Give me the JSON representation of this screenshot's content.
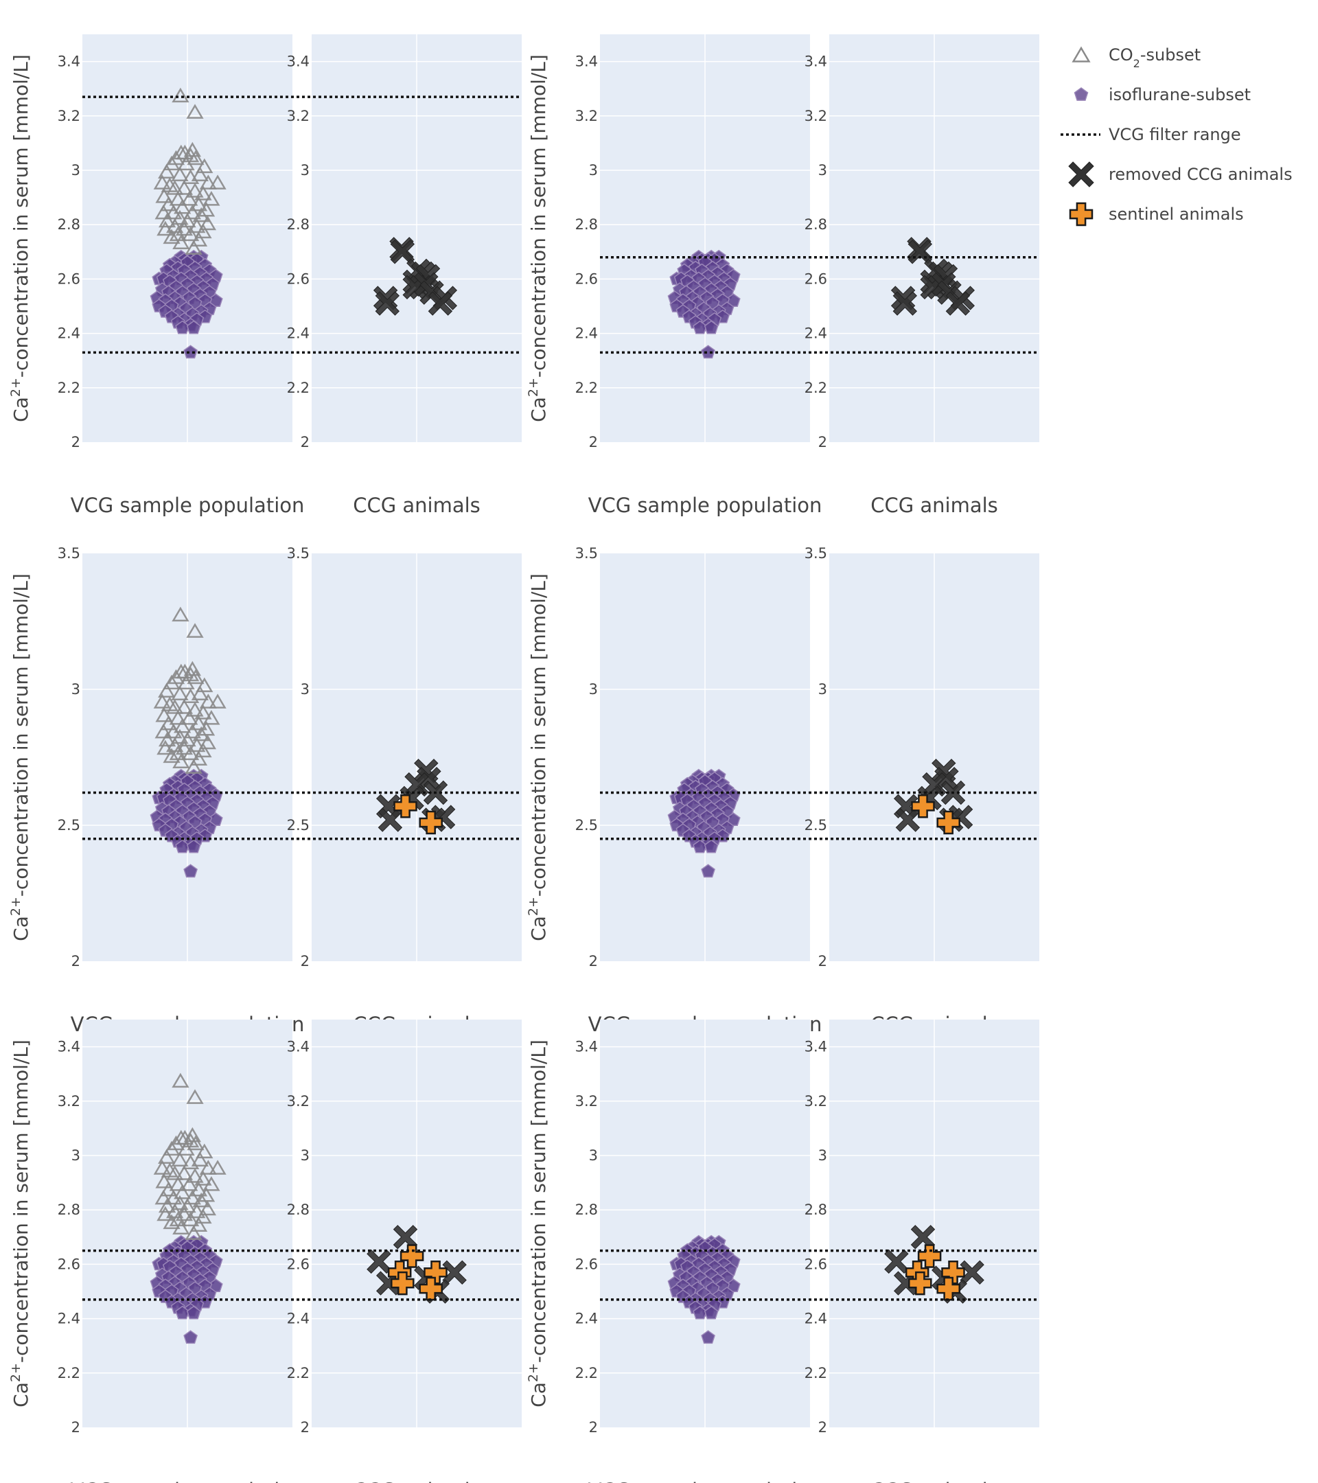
{
  "chart_data": {
    "type": "scatter",
    "legend": {
      "placement": "top-right",
      "items": [
        {
          "key": "co2",
          "label_main": "CO",
          "label_sub": "2",
          "label_rest": "-subset",
          "symbol": "triangle-open",
          "color": "#7a7a7a"
        },
        {
          "key": "iso",
          "label": "isoflurane-subset",
          "symbol": "pentagon",
          "color": "#8e72b0"
        },
        {
          "key": "range",
          "label": "VCG filter range",
          "symbol": "dotted-line",
          "color": "#111111"
        },
        {
          "key": "removed",
          "label": "removed CCG animals",
          "symbol": "x",
          "color": "#333333"
        },
        {
          "key": "sentinel",
          "label": "sentinel animals",
          "symbol": "cross",
          "color": "#f0922b"
        }
      ]
    },
    "ylabel": {
      "prefix": "Ca",
      "sup": "2+",
      "suffix": "-concentration in serum [mmol/L]"
    },
    "categories": [
      "VCG sample population",
      "CCG animals"
    ],
    "colors": {
      "plot_bg": "#e5ecf6",
      "grid": "#ffffff",
      "co2": "#8a8a8a",
      "iso_fill": "#5b3f8c",
      "iso_edge": "#9a86b8",
      "removed": "#333333",
      "sentinel": "#f0922b"
    },
    "panels": [
      {
        "row": 0,
        "col": 0,
        "ylim": [
          2,
          3.5
        ],
        "yticks": [
          "2",
          "2.2",
          "2.4",
          "2.6",
          "2.8",
          "3",
          "3.2",
          "3.4"
        ],
        "filter_range": [
          2.33,
          3.27
        ],
        "show_co2": true,
        "show_iso": true,
        "ccg": "row0"
      },
      {
        "row": 0,
        "col": 1,
        "ylim": [
          2,
          3.5
        ],
        "yticks": [
          "2",
          "2.2",
          "2.4",
          "2.6",
          "2.8",
          "3",
          "3.2",
          "3.4"
        ],
        "filter_range": [
          2.33,
          2.68
        ],
        "show_co2": false,
        "show_iso": true,
        "ccg": "row0"
      },
      {
        "row": 1,
        "col": 0,
        "ylim": [
          2,
          3.5
        ],
        "yticks": [
          "2",
          "2.5",
          "3",
          "3.5"
        ],
        "filter_range": [
          2.45,
          2.62
        ],
        "show_co2": true,
        "show_iso": true,
        "ccg": "row1"
      },
      {
        "row": 1,
        "col": 1,
        "ylim": [
          2,
          3.5
        ],
        "yticks": [
          "2",
          "2.5",
          "3",
          "3.5"
        ],
        "filter_range": [
          2.45,
          2.62
        ],
        "show_co2": false,
        "show_iso": true,
        "ccg": "row1"
      },
      {
        "row": 2,
        "col": 0,
        "ylim": [
          2,
          3.5
        ],
        "yticks": [
          "2",
          "2.2",
          "2.4",
          "2.6",
          "2.8",
          "3",
          "3.2",
          "3.4"
        ],
        "filter_range": [
          2.47,
          2.65
        ],
        "show_co2": true,
        "show_iso": true,
        "ccg": "row2"
      },
      {
        "row": 2,
        "col": 1,
        "ylim": [
          2,
          3.5
        ],
        "yticks": [
          "2",
          "2.2",
          "2.4",
          "2.6",
          "2.8",
          "3",
          "3.2",
          "3.4"
        ],
        "filter_range": [
          2.47,
          2.65
        ],
        "show_co2": false,
        "show_iso": true,
        "ccg": "row2"
      }
    ],
    "ccg_points": {
      "row0": {
        "removed": [
          {
            "x": -0.16,
            "y": 2.71
          },
          {
            "x": -0.15,
            "y": 2.7
          },
          {
            "x": 0.02,
            "y": 2.63
          },
          {
            "x": -0.02,
            "y": 2.59
          },
          {
            "x": 0.07,
            "y": 2.62
          },
          {
            "x": 0.12,
            "y": 2.61
          },
          {
            "x": 0.05,
            "y": 2.57
          },
          {
            "x": -0.02,
            "y": 2.57
          },
          {
            "x": 0.1,
            "y": 2.58
          },
          {
            "x": 0.16,
            "y": 2.55
          },
          {
            "x": -0.33,
            "y": 2.53
          },
          {
            "x": -0.31,
            "y": 2.51
          },
          {
            "x": 0.3,
            "y": 2.53
          },
          {
            "x": 0.25,
            "y": 2.51
          }
        ],
        "sentinel": []
      },
      "row1": {
        "removed": [
          {
            "x": 0.1,
            "y": 2.7
          },
          {
            "x": 0.13,
            "y": 2.67
          },
          {
            "x": 0.0,
            "y": 2.65
          },
          {
            "x": 0.2,
            "y": 2.62
          },
          {
            "x": -0.05,
            "y": 2.6
          },
          {
            "x": -0.3,
            "y": 2.57
          },
          {
            "x": -0.28,
            "y": 2.52
          },
          {
            "x": 0.28,
            "y": 2.53
          },
          {
            "x": 0.18,
            "y": 2.52
          }
        ],
        "sentinel": [
          {
            "x": -0.12,
            "y": 2.57
          },
          {
            "x": 0.15,
            "y": 2.51
          }
        ]
      },
      "row2": {
        "removed": [
          {
            "x": -0.4,
            "y": 2.61
          },
          {
            "x": -0.12,
            "y": 2.7
          },
          {
            "x": -0.3,
            "y": 2.53
          },
          {
            "x": 0.4,
            "y": 2.57
          },
          {
            "x": 0.22,
            "y": 2.5
          },
          {
            "x": 0.1,
            "y": 2.55
          }
        ],
        "sentinel": [
          {
            "x": -0.05,
            "y": 2.63
          },
          {
            "x": -0.18,
            "y": 2.57
          },
          {
            "x": -0.15,
            "y": 2.53
          },
          {
            "x": 0.2,
            "y": 2.57
          },
          {
            "x": 0.15,
            "y": 2.51
          }
        ]
      }
    },
    "co2_subset": [
      {
        "x": -0.11,
        "y": 3.27
      },
      {
        "x": 0.12,
        "y": 3.21
      },
      {
        "x": 0.08,
        "y": 3.07
      },
      {
        "x": -0.1,
        "y": 3.06
      },
      {
        "x": -0.04,
        "y": 3.06
      },
      {
        "x": 0.05,
        "y": 3.05
      },
      {
        "x": -0.18,
        "y": 3.04
      },
      {
        "x": 0.13,
        "y": 3.04
      },
      {
        "x": -0.25,
        "y": 3.02
      },
      {
        "x": 0.27,
        "y": 3.01
      },
      {
        "x": -0.02,
        "y": 3.02
      },
      {
        "x": -0.33,
        "y": 2.99
      },
      {
        "x": 0.2,
        "y": 2.98
      },
      {
        "x": -0.12,
        "y": 2.98
      },
      {
        "x": 0.05,
        "y": 2.97
      },
      {
        "x": -0.4,
        "y": 2.95
      },
      {
        "x": 0.48,
        "y": 2.95
      },
      {
        "x": 0.33,
        "y": 2.95
      },
      {
        "x": -0.28,
        "y": 2.94
      },
      {
        "x": -0.2,
        "y": 2.93
      },
      {
        "x": -0.05,
        "y": 2.93
      },
      {
        "x": 0.12,
        "y": 2.92
      },
      {
        "x": 0.25,
        "y": 2.91
      },
      {
        "x": -0.37,
        "y": 2.9
      },
      {
        "x": -0.15,
        "y": 2.89
      },
      {
        "x": 0.03,
        "y": 2.89
      },
      {
        "x": 0.38,
        "y": 2.89
      },
      {
        "x": -0.3,
        "y": 2.87
      },
      {
        "x": 0.18,
        "y": 2.87
      },
      {
        "x": -0.08,
        "y": 2.86
      },
      {
        "x": 0.3,
        "y": 2.85
      },
      {
        "x": -0.38,
        "y": 2.84
      },
      {
        "x": -0.22,
        "y": 2.84
      },
      {
        "x": 0.08,
        "y": 2.84
      },
      {
        "x": 0.22,
        "y": 2.83
      },
      {
        "x": -0.12,
        "y": 2.82
      },
      {
        "x": -0.32,
        "y": 2.81
      },
      {
        "x": 0.0,
        "y": 2.81
      },
      {
        "x": 0.32,
        "y": 2.8
      },
      {
        "x": -0.2,
        "y": 2.79
      },
      {
        "x": 0.15,
        "y": 2.79
      },
      {
        "x": -0.05,
        "y": 2.78
      },
      {
        "x": -0.35,
        "y": 2.78
      },
      {
        "x": 0.25,
        "y": 2.77
      },
      {
        "x": -0.15,
        "y": 2.76
      },
      {
        "x": 0.05,
        "y": 2.76
      },
      {
        "x": -0.25,
        "y": 2.75
      },
      {
        "x": 0.18,
        "y": 2.74
      },
      {
        "x": -0.1,
        "y": 2.73
      },
      {
        "x": 0.1,
        "y": 2.71
      }
    ],
    "iso_subset": [
      {
        "x": 0.1,
        "y": 2.68
      },
      {
        "x": -0.1,
        "y": 2.68
      },
      {
        "x": 0.22,
        "y": 2.68
      },
      {
        "x": -0.05,
        "y": 2.67
      },
      {
        "x": 0.05,
        "y": 2.67
      },
      {
        "x": 0.15,
        "y": 2.67
      },
      {
        "x": -0.2,
        "y": 2.66
      },
      {
        "x": 0.0,
        "y": 2.66
      },
      {
        "x": 0.28,
        "y": 2.65
      },
      {
        "x": -0.28,
        "y": 2.65
      },
      {
        "x": -0.15,
        "y": 2.64
      },
      {
        "x": 0.12,
        "y": 2.64
      },
      {
        "x": 0.35,
        "y": 2.63
      },
      {
        "x": -0.33,
        "y": 2.63
      },
      {
        "x": -0.05,
        "y": 2.63
      },
      {
        "x": 0.2,
        "y": 2.62
      },
      {
        "x": 0.45,
        "y": 2.61
      },
      {
        "x": -0.45,
        "y": 2.6
      },
      {
        "x": -0.22,
        "y": 2.61
      },
      {
        "x": 0.05,
        "y": 2.61
      },
      {
        "x": 0.3,
        "y": 2.6
      },
      {
        "x": -0.38,
        "y": 2.6
      },
      {
        "x": -0.1,
        "y": 2.6
      },
      {
        "x": 0.15,
        "y": 2.59
      },
      {
        "x": -0.28,
        "y": 2.59
      },
      {
        "x": 0.4,
        "y": 2.58
      },
      {
        "x": 0.0,
        "y": 2.58
      },
      {
        "x": -0.18,
        "y": 2.57
      },
      {
        "x": 0.25,
        "y": 2.57
      },
      {
        "x": -0.4,
        "y": 2.56
      },
      {
        "x": 0.1,
        "y": 2.56
      },
      {
        "x": -0.08,
        "y": 2.55
      },
      {
        "x": 0.35,
        "y": 2.55
      },
      {
        "x": -0.3,
        "y": 2.55
      },
      {
        "x": 0.2,
        "y": 2.54
      },
      {
        "x": -0.48,
        "y": 2.53
      },
      {
        "x": -0.2,
        "y": 2.53
      },
      {
        "x": 0.03,
        "y": 2.53
      },
      {
        "x": 0.45,
        "y": 2.52
      },
      {
        "x": -0.35,
        "y": 2.52
      },
      {
        "x": 0.28,
        "y": 2.52
      },
      {
        "x": -0.12,
        "y": 2.51
      },
      {
        "x": 0.12,
        "y": 2.51
      },
      {
        "x": -0.45,
        "y": 2.5
      },
      {
        "x": -0.25,
        "y": 2.5
      },
      {
        "x": 0.35,
        "y": 2.49
      },
      {
        "x": -0.02,
        "y": 2.49
      },
      {
        "x": 0.22,
        "y": 2.48
      },
      {
        "x": -0.35,
        "y": 2.48
      },
      {
        "x": -0.15,
        "y": 2.47
      },
      {
        "x": 0.08,
        "y": 2.47
      },
      {
        "x": 0.28,
        "y": 2.46
      },
      {
        "x": -0.25,
        "y": 2.46
      },
      {
        "x": -0.05,
        "y": 2.45
      },
      {
        "x": 0.15,
        "y": 2.45
      },
      {
        "x": -0.15,
        "y": 2.44
      },
      {
        "x": 0.05,
        "y": 2.43
      },
      {
        "x": -0.08,
        "y": 2.42
      },
      {
        "x": 0.1,
        "y": 2.42
      },
      {
        "x": 0.05,
        "y": 2.33
      }
    ]
  }
}
